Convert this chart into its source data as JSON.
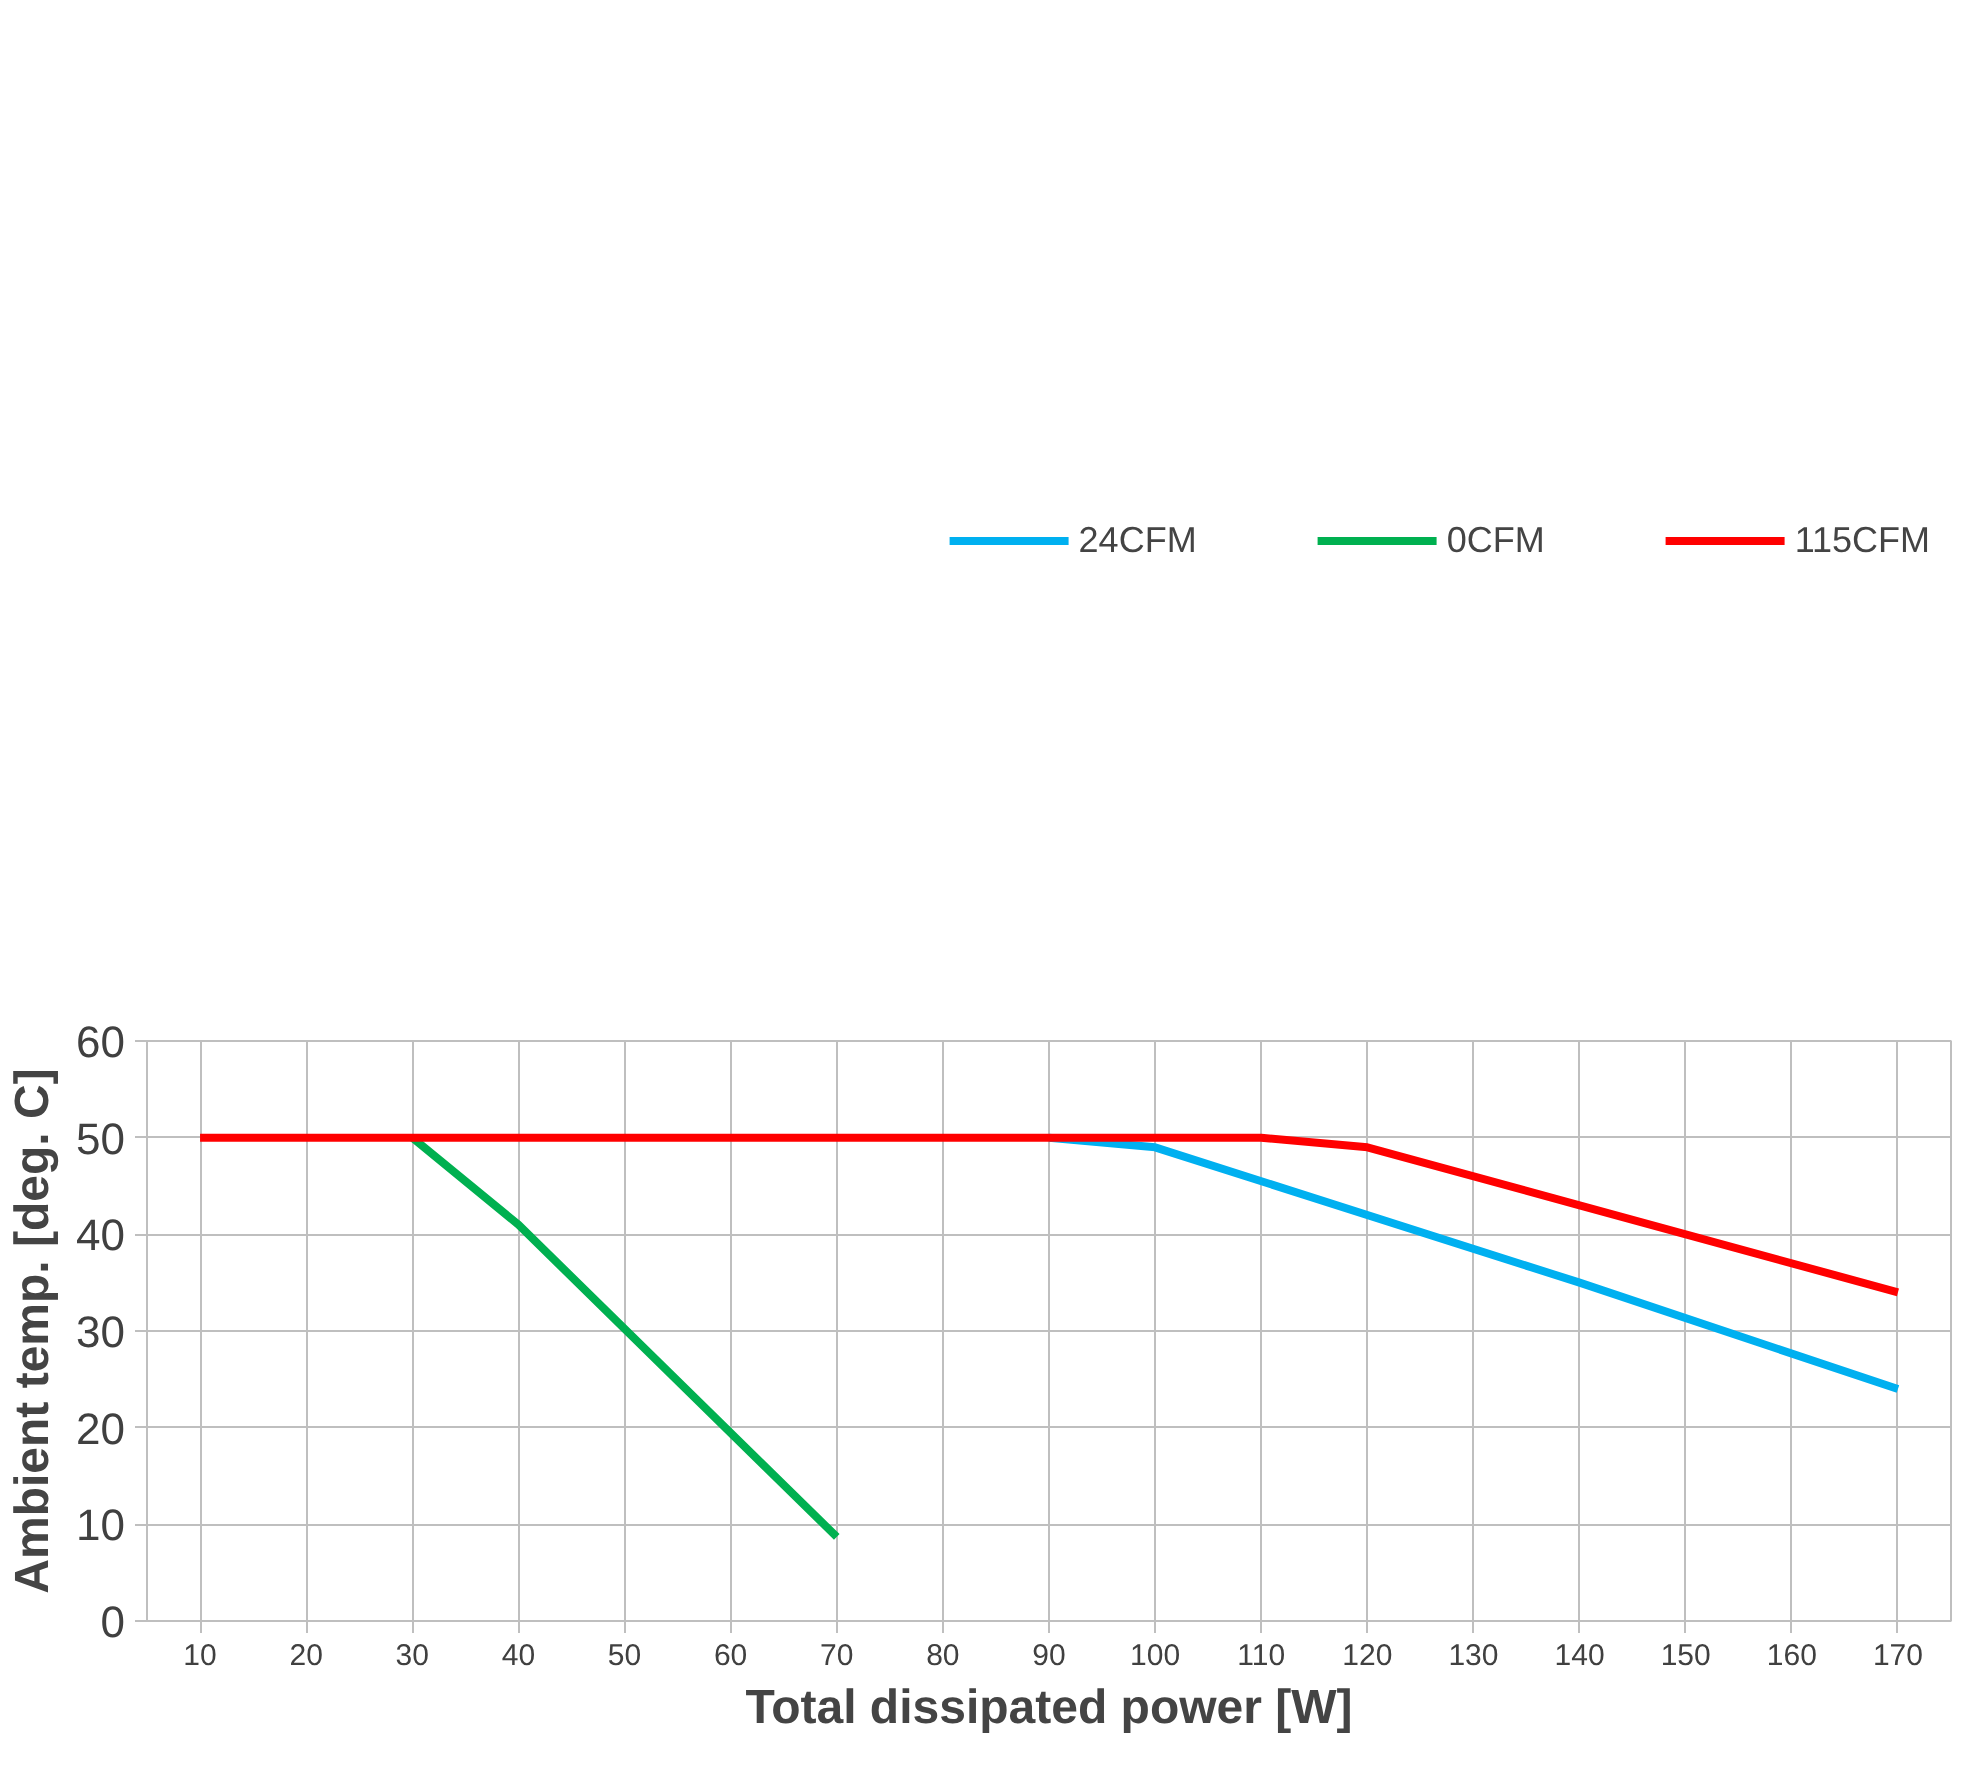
{
  "chart_data": {
    "type": "line",
    "xlabel": "Total dissipated power [W]",
    "ylabel": "Ambient temp. [deg. C]",
    "xlim": [
      5,
      175
    ],
    "xticks": [
      10,
      20,
      30,
      40,
      50,
      60,
      70,
      80,
      90,
      100,
      110,
      120,
      130,
      140,
      150,
      160,
      170
    ],
    "ylim": [
      0,
      60
    ],
    "yticks": [
      0,
      10,
      20,
      30,
      40,
      50,
      60
    ],
    "grid": true,
    "legend": "top",
    "marker": "none",
    "line_style": "solid",
    "series": [
      {
        "name": "24CFM",
        "color": "#00b0f0",
        "x": [
          90,
          100,
          140,
          170
        ],
        "values": [
          50,
          49,
          35,
          24
        ]
      },
      {
        "name": "0CFM",
        "color": "#00b050",
        "x": [
          30,
          40,
          70
        ],
        "values": [
          50,
          41,
          8.7
        ]
      },
      {
        "name": "115CFM",
        "color": "#ff0000",
        "x": [
          10,
          110,
          120,
          140,
          170
        ],
        "values": [
          50,
          50,
          49,
          43,
          34
        ]
      }
    ]
  }
}
